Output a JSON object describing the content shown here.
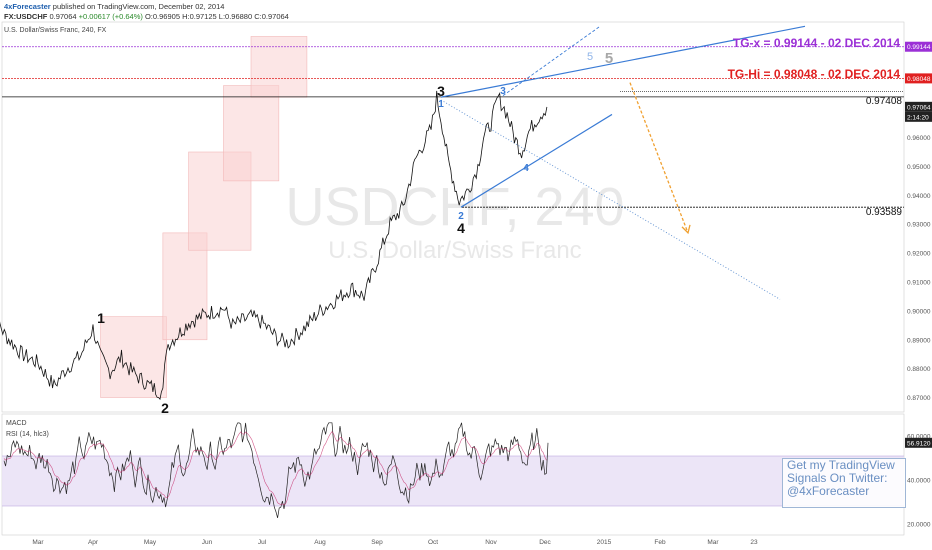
{
  "header": {
    "publisher": "4xForecaster",
    "published_text": "published on TradingView.com, December 02, 2014",
    "symbol": "FX:USDCHF",
    "price": "0.97064",
    "change": "+0.00617 (+0.64%)",
    "ohlc": "O:0.96905 H:0.97125 L:0.96880 C:0.97064",
    "subtitle": "U.S. Dollar/Swiss Franc, 240, FX"
  },
  "watermark": {
    "symbol": "USDCHF, 240",
    "name": "U.S. Dollar/Swiss Franc"
  },
  "annotations": {
    "tg_x": "TG-x = 0.99144 - 02 DEC 2014",
    "tg_hi": "TG-Hi = 0.98048 - 02 DEC 2014",
    "level_high": "0.97408",
    "level_low": "0.93589",
    "waves": {
      "w1": "1",
      "w2": "2",
      "w3": "3",
      "w4": "4",
      "s1": "1",
      "s2": "2",
      "s3": "3",
      "s4": "4",
      "s5": "5",
      "s5b": "5"
    }
  },
  "price_axis": {
    "ticks": [
      "0.99144",
      "0.98048",
      "0.97064",
      "2:14:20",
      "0.96000",
      "0.95000",
      "0.94000",
      "0.93000",
      "0.92000",
      "0.91000",
      "0.90000",
      "0.89000",
      "0.88000",
      "0.87000"
    ]
  },
  "indicator": {
    "title1": "MACD",
    "title2": "RSI (14, hlc3)",
    "ticks": [
      "60.0000",
      "56.9120",
      "40.0000",
      "20.0000"
    ]
  },
  "time_axis": {
    "ticks": [
      "Mar",
      "Apr",
      "May",
      "Jun",
      "Jul",
      "Aug",
      "Sep",
      "Oct",
      "Nov",
      "Dec",
      "2015",
      "Feb",
      "Mar",
      "23"
    ]
  },
  "promo": {
    "line1": "Get my TradingView",
    "line2": "Signals On Twitter:",
    "line3": "@4xForecaster"
  },
  "colors": {
    "tg_x": "#9b30d6",
    "tg_hi": "#e02020",
    "trendline": "#3a7bd5",
    "projection": "#f0a030",
    "box_fill": "#f9d2d2",
    "rsi_band": "#e9e0f6"
  },
  "chart_data": {
    "type": "line",
    "title": "U.S. Dollar/Swiss Franc, 240, FX",
    "y_range": [
      0.865,
      1.0
    ],
    "x_labels": [
      "Mar",
      "Apr",
      "May",
      "Jun",
      "Jul",
      "Aug",
      "Sep",
      "Oct",
      "Nov",
      "Dec",
      "2015",
      "Feb",
      "Mar",
      "23"
    ],
    "series": [
      {
        "name": "USDCHF",
        "x": [
          "2014-02-01",
          "2014-02-10",
          "2014-02-20",
          "2014-03-01",
          "2014-03-10",
          "2014-03-17",
          "2014-03-25",
          "2014-04-01",
          "2014-04-05",
          "2014-04-10",
          "2014-04-16",
          "2014-04-20",
          "2014-04-25",
          "2014-05-01",
          "2014-05-08",
          "2014-05-10",
          "2014-05-15",
          "2014-05-22",
          "2014-06-01",
          "2014-06-10",
          "2014-06-15",
          "2014-06-25",
          "2014-07-01",
          "2014-07-10",
          "2014-07-15",
          "2014-07-25",
          "2014-08-01",
          "2014-08-10",
          "2014-08-18",
          "2014-08-25",
          "2014-09-01",
          "2014-09-08",
          "2014-09-15",
          "2014-09-22",
          "2014-09-30",
          "2014-10-03",
          "2014-10-06",
          "2014-10-09",
          "2014-10-12",
          "2014-10-15",
          "2014-10-20",
          "2014-10-25",
          "2014-10-28",
          "2014-11-01",
          "2014-11-05",
          "2014-11-10",
          "2014-11-14",
          "2014-11-18",
          "2014-11-22",
          "2014-11-26",
          "2014-12-02"
        ],
        "values": [
          0.904,
          0.892,
          0.885,
          0.882,
          0.874,
          0.88,
          0.8845,
          0.894,
          0.884,
          0.879,
          0.884,
          0.88,
          0.877,
          0.874,
          0.8715,
          0.888,
          0.891,
          0.896,
          0.899,
          0.901,
          0.895,
          0.898,
          0.896,
          0.89,
          0.889,
          0.895,
          0.9,
          0.904,
          0.908,
          0.905,
          0.917,
          0.93,
          0.936,
          0.953,
          0.963,
          0.974,
          0.964,
          0.952,
          0.945,
          0.938,
          0.942,
          0.95,
          0.96,
          0.965,
          0.974,
          0.968,
          0.96,
          0.955,
          0.962,
          0.966,
          0.9706
        ]
      }
    ],
    "levels": [
      {
        "label": "TG-x = 0.99144 - 02 DEC 2014",
        "value": 0.99144
      },
      {
        "label": "TG-Hi = 0.98048 - 02 DEC 2014",
        "value": 0.98048
      },
      {
        "label": "0.97408",
        "value": 0.97408
      },
      {
        "label": "0.93589",
        "value": 0.93589
      }
    ],
    "indicator_series": {
      "name": "RSI (14, hlc3)",
      "y_range": [
        15,
        70
      ],
      "last": 56.912
    }
  }
}
